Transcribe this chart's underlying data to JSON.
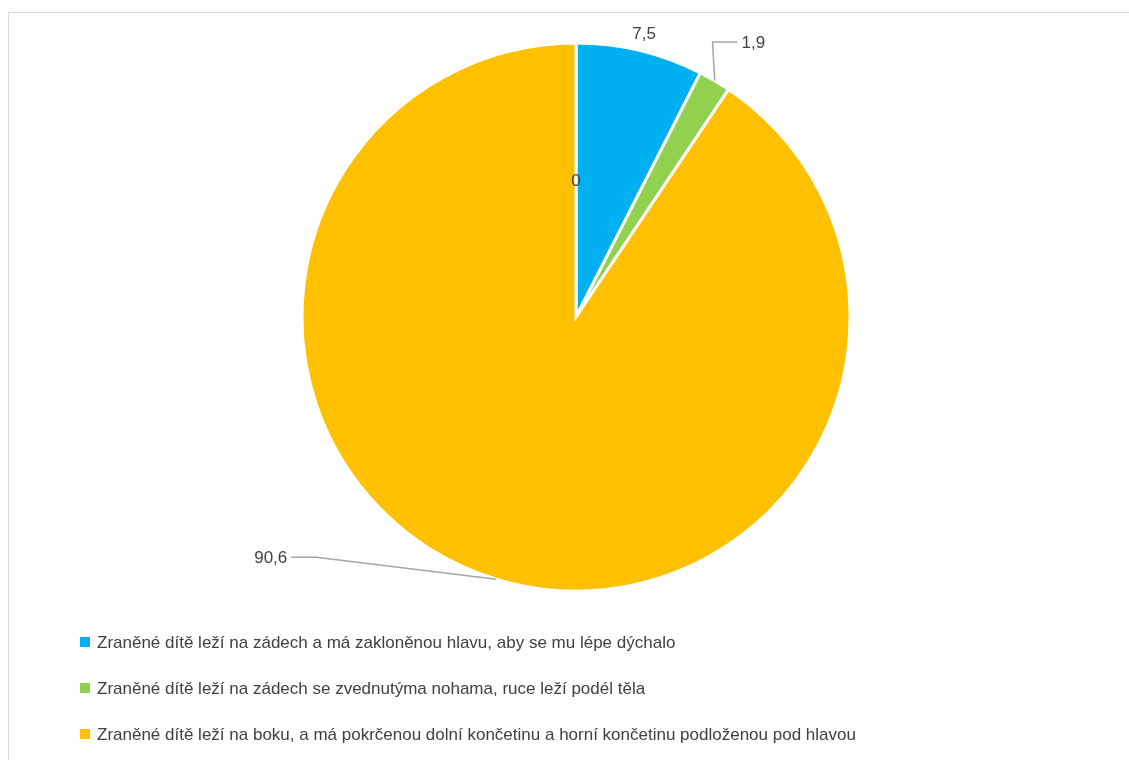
{
  "chart_data": {
    "type": "pie",
    "categories": [
      null,
      "Zraněné dítě leží na zádech a má zakloněnou hlavu, aby se mu lépe dýchalo",
      "Zraněné dítě leží na zádech se zvednutýma nohama, ruce leží podél těla",
      "Zraněné dítě leží na boku, a má pokrčenou dolní končetinu a horní končetinu podloženou pod hlavou"
    ],
    "values": [
      0,
      7.5,
      1.9,
      90.6
    ],
    "value_labels": [
      "0",
      "7,5",
      "1,9",
      "90,6"
    ],
    "colors": [
      "#a5a5a5",
      "#00b0f0",
      "#92d050",
      "#ffc000"
    ],
    "legend": "bottom"
  }
}
